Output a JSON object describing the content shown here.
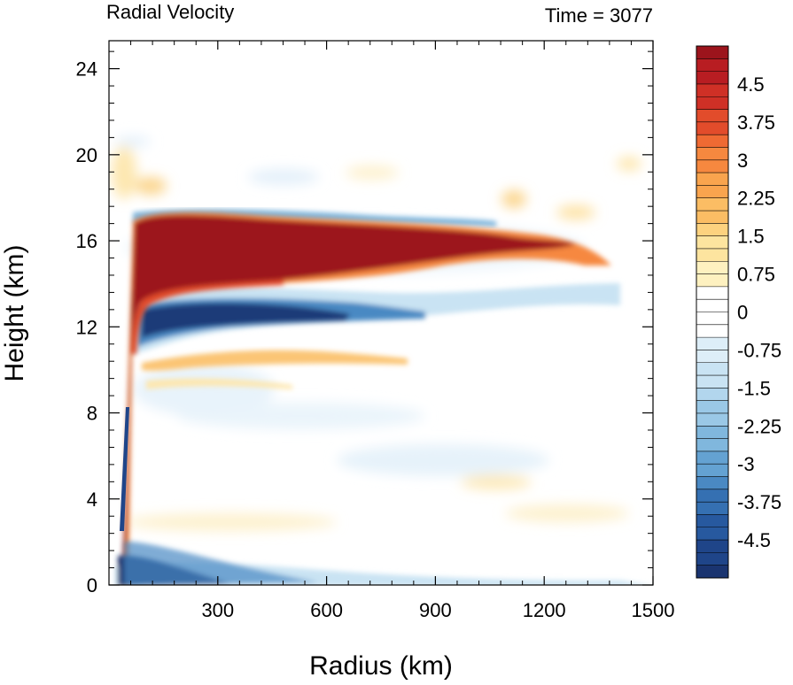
{
  "chart_data": {
    "type": "heatmap",
    "title_left": "Radial Velocity",
    "title_right": "Time = 3077",
    "xlabel": "Radius (km)",
    "ylabel": "Height (km)",
    "xlim": [
      0,
      1500
    ],
    "ylim": [
      0,
      25.3
    ],
    "x_ticks": [
      "300",
      "600",
      "900",
      "1200",
      "1500"
    ],
    "x_tick_values": [
      300,
      600,
      900,
      1200,
      1500
    ],
    "y_ticks": [
      "0",
      "4",
      "8",
      "12",
      "16",
      "20",
      "24"
    ],
    "y_tick_values": [
      0,
      4,
      8,
      12,
      16,
      20,
      24
    ],
    "colorbar": {
      "min": -5.25,
      "max": 5.25,
      "step": 0.25,
      "labels": [
        "4.5",
        "3.75",
        "3",
        "2.25",
        "1.5",
        "0.75",
        "0",
        "-0.75",
        "-1.5",
        "-2.25",
        "-3",
        "-3.75",
        "-4.5"
      ],
      "label_values": [
        4.5,
        3.75,
        3,
        2.25,
        1.5,
        0.75,
        0,
        -0.75,
        -1.5,
        -2.25,
        -3,
        -3.75,
        -4.5
      ],
      "colors_positive": [
        "#fffbe0",
        "#fef1c0",
        "#fde49f",
        "#fdd27f",
        "#fbbd64",
        "#f9a44e",
        "#f6883f",
        "#ef6a33",
        "#e24c2b",
        "#cf3026",
        "#b81d22",
        "#9c141c"
      ],
      "colors_negative": [
        "#eef6fb",
        "#ddeef8",
        "#c9e3f3",
        "#b2d6ed",
        "#9ac8e6",
        "#80b7dd",
        "#64a2d2",
        "#4a89c3",
        "#3570b2",
        "#27599f",
        "#1f4589",
        "#1a3470"
      ]
    },
    "features": [
      {
        "name": "outflow",
        "sign": "positive",
        "peak": 5.25,
        "approx_radius_km": [
          40,
          1280
        ],
        "approx_height_km": [
          13.5,
          17.2
        ]
      },
      {
        "name": "eyewall outflow",
        "sign": "positive",
        "peak": 5.25,
        "approx_radius_km": [
          30,
          120
        ],
        "approx_height_km": [
          0.5,
          16
        ]
      },
      {
        "name": "upper inflow",
        "sign": "negative",
        "peak": -5.25,
        "approx_radius_km": [
          100,
          800
        ],
        "approx_height_km": [
          11.5,
          14
        ]
      },
      {
        "name": "boundary layer inflow",
        "sign": "negative",
        "peak": -5.25,
        "approx_radius_km": [
          30,
          1000
        ],
        "approx_height_km": [
          0,
          1.5
        ]
      },
      {
        "name": "mid-level weak outflow",
        "sign": "positive",
        "peak": 2.0,
        "approx_radius_km": [
          100,
          700
        ],
        "approx_height_km": [
          10,
          11.2
        ]
      }
    ]
  }
}
